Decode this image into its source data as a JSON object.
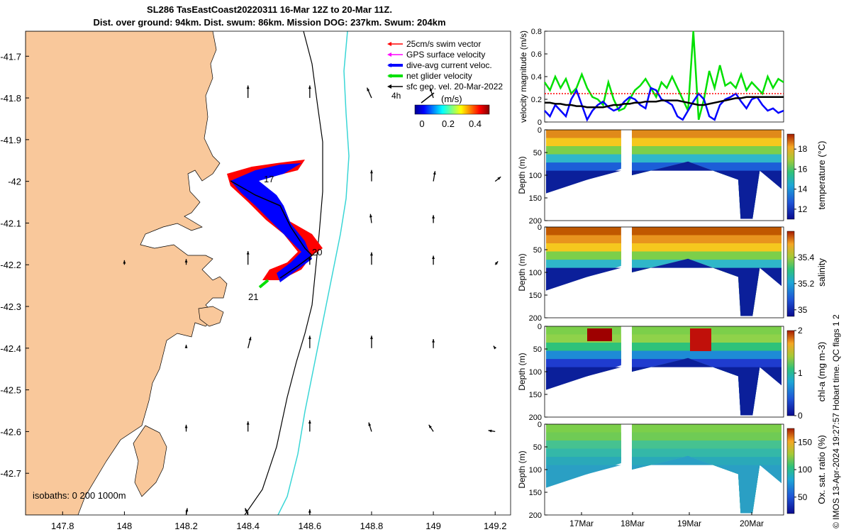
{
  "title": {
    "line1": "SL286 TasEastCoast20220311 16-Mar 12Z to 20-Mar 11Z.",
    "line2": "Dist. over ground: 94km. Dist. swum: 86km. Mission DOG: 237km. Swum: 204km"
  },
  "colors": {
    "land": "#f9c89b",
    "swim": "#ff0000",
    "gps": "#ff00ff",
    "dive": "#0000ff",
    "net": "#00e000",
    "sfc": "#000000",
    "isobath200": "#000000",
    "isobath1000": "#3ad6d6"
  },
  "chart_data": [
    {
      "type": "map",
      "xticks": [
        "147.8",
        "148",
        "148.2",
        "148.4",
        "148.6",
        "148.8",
        "149",
        "149.2"
      ],
      "yticks": [
        "-41.7",
        "-41.8",
        "-41.9",
        "-42",
        "-42.1",
        "-42.2",
        "-42.3",
        "-42.4",
        "-42.5",
        "-42.6",
        "-42.7"
      ],
      "xlim": [
        147.68,
        149.25
      ],
      "ylim": [
        -42.8,
        -41.64
      ],
      "legend": [
        {
          "label": "25cm/s swim vector",
          "color": "#ff0000"
        },
        {
          "label": "GPS surface velocity",
          "color": "#ff00ff"
        },
        {
          "label": "dive-avg current veloc.",
          "color": "#0000ff"
        },
        {
          "label": "net glider velocity",
          "color": "#00e000"
        },
        {
          "label": "sfc geo. vel. 20-Mar-2022",
          "color": "#000000"
        }
      ],
      "colorbar": {
        "title": "(m/s)",
        "ticks": [
          "0",
          "0.2",
          "0.4"
        ],
        "label4h": "4h"
      },
      "isobath_label": "isobaths: 0   200  1000m",
      "track_labels": [
        "17",
        "20",
        "21"
      ],
      "track": [
        [
          148.36,
          -41.99
        ],
        [
          148.43,
          -42.04
        ],
        [
          148.5,
          -42.06
        ],
        [
          148.56,
          -42.14
        ],
        [
          148.6,
          -42.18
        ],
        [
          148.63,
          -42.19
        ],
        [
          148.55,
          -42.22
        ],
        [
          148.45,
          -42.25
        ]
      ],
      "sfc_vectors": [
        [
          148.4,
          -41.8,
          0,
          0.22
        ],
        [
          148.6,
          -41.8,
          0,
          0.22
        ],
        [
          148.8,
          -41.8,
          -0.08,
          0.18
        ],
        [
          149.0,
          -41.8,
          -0.06,
          0.18
        ],
        [
          148.8,
          -42.0,
          0,
          0.2
        ],
        [
          149.0,
          -42.0,
          0.03,
          0.18
        ],
        [
          149.2,
          -42.0,
          0.1,
          0.08
        ],
        [
          148.8,
          -42.1,
          -0.02,
          0.16
        ],
        [
          149.0,
          -42.1,
          0,
          0.14
        ],
        [
          148.0,
          -42.2,
          0,
          0.08
        ],
        [
          148.2,
          -42.2,
          0,
          0.1
        ],
        [
          148.4,
          -42.2,
          0,
          0.24
        ],
        [
          148.6,
          -42.2,
          0,
          0.14
        ],
        [
          148.8,
          -42.2,
          0,
          0.22
        ],
        [
          149.0,
          -42.2,
          0,
          0.16
        ],
        [
          149.2,
          -42.2,
          0.05,
          0.06
        ],
        [
          148.2,
          -42.4,
          0,
          0.06
        ],
        [
          148.4,
          -42.4,
          0.05,
          0.2
        ],
        [
          148.6,
          -42.4,
          0,
          0.22
        ],
        [
          148.8,
          -42.4,
          0,
          0.22
        ],
        [
          149.0,
          -42.4,
          0,
          0.16
        ],
        [
          149.2,
          -42.4,
          -0.03,
          0.04
        ],
        [
          148.2,
          -42.6,
          0,
          0.12
        ],
        [
          148.4,
          -42.6,
          0,
          0.18
        ],
        [
          148.6,
          -42.6,
          0,
          0.2
        ],
        [
          148.8,
          -42.6,
          -0.05,
          0.16
        ],
        [
          149.0,
          -42.6,
          -0.08,
          0.12
        ],
        [
          149.2,
          -42.6,
          -0.12,
          0.02
        ],
        [
          148.2,
          -42.8,
          0.02,
          0.12
        ],
        [
          148.4,
          -42.8,
          -0.05,
          0.12
        ],
        [
          148.6,
          -42.8,
          0,
          0.1
        ]
      ]
    },
    {
      "type": "line",
      "ylabel": "velocity magnitude (m/s)",
      "ylim": [
        0,
        0.8
      ],
      "yticks": [
        "0",
        "0.2",
        "0.4",
        "0.6",
        "0.8"
      ],
      "series": [
        {
          "name": "net glider velocity",
          "color": "#00e000",
          "values": [
            0.35,
            0.28,
            0.4,
            0.3,
            0.38,
            0.25,
            0.3,
            0.42,
            0.3,
            0.22,
            0.2,
            0.15,
            0.35,
            0.2,
            0.1,
            0.12,
            0.2,
            0.28,
            0.32,
            0.38,
            0.3,
            0.22,
            0.35,
            0.3,
            0.4,
            0.3,
            0.2,
            0.1,
            0.8,
            0.02,
            0.2,
            0.45,
            0.3,
            0.5,
            0.32,
            0.35,
            0.3,
            0.42,
            0.28,
            0.35,
            0.3,
            0.25,
            0.4,
            0.3,
            0.38,
            0.35
          ]
        },
        {
          "name": "dive-avg current veloc.",
          "color": "#0000ff",
          "values": [
            0.1,
            0.05,
            0.15,
            0.1,
            0.05,
            0.2,
            0.28,
            0.15,
            0.02,
            0.1,
            0.15,
            0.18,
            0.13,
            0.1,
            0.12,
            0.18,
            0.22,
            0.2,
            0.15,
            0.12,
            0.3,
            0.28,
            0.2,
            0.18,
            0.15,
            0.05,
            0.02,
            0.1,
            0.18,
            0.25,
            0.2,
            0.05,
            0.02,
            0.15,
            0.2,
            0.22,
            0.25,
            0.18,
            0.12,
            0.2,
            0.22,
            0.15,
            0.1,
            0.12,
            0.08,
            0.1
          ]
        },
        {
          "name": "swim speed",
          "color": "#ff0000",
          "values": [
            0.25,
            0.25,
            0.25,
            0.25,
            0.25,
            0.25,
            0.25,
            0.25,
            0.25,
            0.25,
            0.25,
            0.25,
            0.25,
            0.25,
            0.25,
            0.25,
            0.25,
            0.25,
            0.25,
            0.25,
            0.25,
            0.25,
            0.25,
            0.25,
            0.25,
            0.25,
            0.25,
            0.25,
            0.25,
            0.25,
            0.25,
            0.25,
            0.25,
            0.25,
            0.25,
            0.25,
            0.25,
            0.25,
            0.25,
            0.25,
            0.25,
            0.25,
            0.25,
            0.25,
            0.25,
            0.25
          ]
        },
        {
          "name": "sfc geo. vel.",
          "color": "#000000",
          "values": [
            0.17,
            0.17,
            0.16,
            0.16,
            0.15,
            0.15,
            0.14,
            0.14,
            0.13,
            0.13,
            0.13,
            0.13,
            0.14,
            0.15,
            0.15,
            0.16,
            0.16,
            0.17,
            0.17,
            0.18,
            0.18,
            0.18,
            0.19,
            0.19,
            0.19,
            0.19,
            0.18,
            0.17,
            0.16,
            0.15,
            0.15,
            0.16,
            0.17,
            0.18,
            0.19,
            0.2,
            0.21,
            0.21,
            0.22,
            0.22,
            0.22,
            0.22,
            0.22,
            0.22,
            0.22,
            0.22
          ]
        }
      ]
    },
    {
      "type": "heatmap",
      "label": "temperature (°C)",
      "ylabel": "Depth (m)",
      "yticks": [
        "0",
        "50",
        "100",
        "150",
        "200"
      ],
      "cbar_ticks": [
        "12",
        "14",
        "16",
        "18"
      ],
      "cbar_range": [
        11,
        19.5
      ]
    },
    {
      "type": "heatmap",
      "label": "salinity",
      "ylabel": "Depth (m)",
      "yticks": [
        "0",
        "50",
        "100",
        "150",
        "200"
      ],
      "cbar_ticks": [
        "35",
        "35.2",
        "35.4"
      ],
      "cbar_range": [
        34.95,
        35.6
      ]
    },
    {
      "type": "heatmap",
      "label": "chl-a (mg m-3)",
      "ylabel": "Depth (m)",
      "yticks": [
        "0",
        "50",
        "100",
        "150",
        "200"
      ],
      "cbar_ticks": [
        "0",
        "1",
        "2"
      ],
      "cbar_range": [
        0,
        2
      ]
    },
    {
      "type": "heatmap",
      "label": "Ox. sat. ratio (%)",
      "ylabel": "Depth (m)",
      "yticks": [
        "0",
        "50",
        "100",
        "150",
        "200"
      ],
      "cbar_ticks": [
        "50",
        "100",
        "150"
      ],
      "cbar_range": [
        20,
        175
      ]
    }
  ],
  "time_axis": {
    "ticks": [
      "17Mar",
      "18Mar",
      "19Mar",
      "20Mar"
    ]
  },
  "side_label": "© IMOS 13-Apr-2024 19:27:57 Hobart time. QC flags 1  2"
}
